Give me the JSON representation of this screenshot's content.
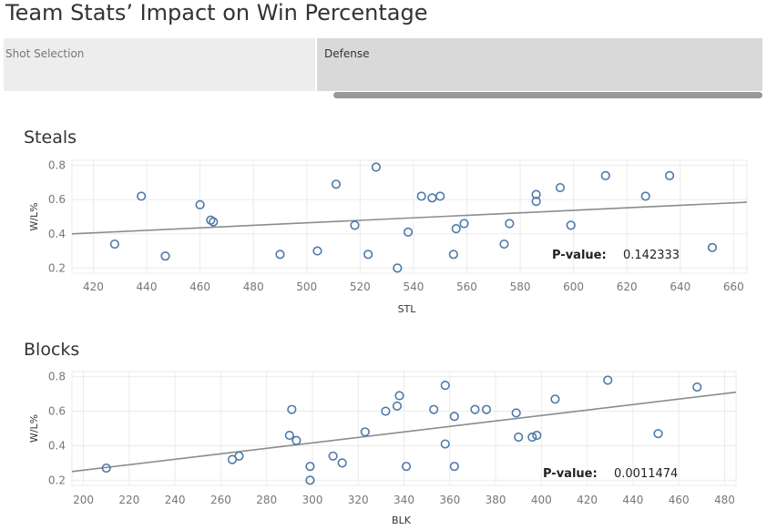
{
  "title": "Team Stats’ Impact on Win Percentage",
  "tabs": [
    {
      "label": "Shot Selection",
      "selected": false
    },
    {
      "label": "Defense",
      "selected": true
    }
  ],
  "colors": {
    "marker": "#4e79a7",
    "trend": "#8c8c8c",
    "grid": "#ebebeb"
  },
  "chart_data": [
    {
      "type": "scatter",
      "title": "Steals",
      "xlabel": "STL",
      "ylabel": "W/L%",
      "xlim": [
        412,
        665
      ],
      "ylim": [
        0.17,
        0.83
      ],
      "xticks": [
        420,
        440,
        460,
        480,
        500,
        520,
        540,
        560,
        580,
        600,
        620,
        640,
        660
      ],
      "yticks": [
        0.2,
        0.4,
        0.6,
        0.8
      ],
      "trendline": {
        "x": [
          412,
          665
        ],
        "y": [
          0.4,
          0.585
        ]
      },
      "annotation": {
        "label": "P-value:",
        "value": "0.142333"
      },
      "points": [
        {
          "x": 428,
          "y": 0.34
        },
        {
          "x": 438,
          "y": 0.62
        },
        {
          "x": 447,
          "y": 0.27
        },
        {
          "x": 460,
          "y": 0.57
        },
        {
          "x": 464,
          "y": 0.48
        },
        {
          "x": 465,
          "y": 0.47
        },
        {
          "x": 490,
          "y": 0.28
        },
        {
          "x": 504,
          "y": 0.3
        },
        {
          "x": 511,
          "y": 0.69
        },
        {
          "x": 518,
          "y": 0.45
        },
        {
          "x": 523,
          "y": 0.28
        },
        {
          "x": 526,
          "y": 0.79
        },
        {
          "x": 534,
          "y": 0.2
        },
        {
          "x": 538,
          "y": 0.41
        },
        {
          "x": 543,
          "y": 0.62
        },
        {
          "x": 547,
          "y": 0.61
        },
        {
          "x": 550,
          "y": 0.62
        },
        {
          "x": 555,
          "y": 0.28
        },
        {
          "x": 556,
          "y": 0.43
        },
        {
          "x": 559,
          "y": 0.46
        },
        {
          "x": 574,
          "y": 0.34
        },
        {
          "x": 576,
          "y": 0.46
        },
        {
          "x": 586,
          "y": 0.63
        },
        {
          "x": 586,
          "y": 0.59
        },
        {
          "x": 595,
          "y": 0.67
        },
        {
          "x": 599,
          "y": 0.45
        },
        {
          "x": 612,
          "y": 0.74
        },
        {
          "x": 627,
          "y": 0.62
        },
        {
          "x": 636,
          "y": 0.74
        },
        {
          "x": 652,
          "y": 0.32
        }
      ]
    },
    {
      "type": "scatter",
      "title": "Blocks",
      "xlabel": "BLK",
      "ylabel": "W/L%",
      "xlim": [
        195,
        485
      ],
      "ylim": [
        0.17,
        0.83
      ],
      "xticks": [
        200,
        220,
        240,
        260,
        280,
        300,
        320,
        340,
        360,
        380,
        400,
        420,
        440,
        460,
        480
      ],
      "yticks": [
        0.2,
        0.4,
        0.6,
        0.8
      ],
      "trendline": {
        "x": [
          195,
          485
        ],
        "y": [
          0.25,
          0.71
        ]
      },
      "annotation": {
        "label": "P-value:",
        "value": "0.0011474"
      },
      "points": [
        {
          "x": 210,
          "y": 0.27
        },
        {
          "x": 265,
          "y": 0.32
        },
        {
          "x": 268,
          "y": 0.34
        },
        {
          "x": 290,
          "y": 0.46
        },
        {
          "x": 291,
          "y": 0.61
        },
        {
          "x": 293,
          "y": 0.43
        },
        {
          "x": 299,
          "y": 0.28
        },
        {
          "x": 299,
          "y": 0.2
        },
        {
          "x": 309,
          "y": 0.34
        },
        {
          "x": 313,
          "y": 0.3
        },
        {
          "x": 323,
          "y": 0.48
        },
        {
          "x": 332,
          "y": 0.6
        },
        {
          "x": 337,
          "y": 0.63
        },
        {
          "x": 338,
          "y": 0.69
        },
        {
          "x": 341,
          "y": 0.28
        },
        {
          "x": 353,
          "y": 0.61
        },
        {
          "x": 358,
          "y": 0.75
        },
        {
          "x": 358,
          "y": 0.41
        },
        {
          "x": 362,
          "y": 0.57
        },
        {
          "x": 362,
          "y": 0.28
        },
        {
          "x": 371,
          "y": 0.61
        },
        {
          "x": 376,
          "y": 0.61
        },
        {
          "x": 389,
          "y": 0.59
        },
        {
          "x": 390,
          "y": 0.45
        },
        {
          "x": 396,
          "y": 0.45
        },
        {
          "x": 398,
          "y": 0.46
        },
        {
          "x": 406,
          "y": 0.67
        },
        {
          "x": 429,
          "y": 0.78
        },
        {
          "x": 451,
          "y": 0.47
        },
        {
          "x": 468,
          "y": 0.74
        }
      ]
    }
  ]
}
